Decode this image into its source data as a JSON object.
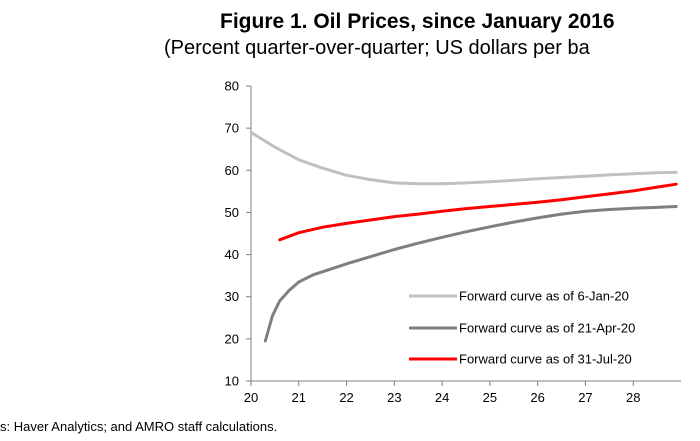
{
  "chart_data": {
    "type": "line",
    "title": "Figure 1. Oil Prices, since January 2016",
    "subtitle": "(Percent quarter-over-quarter; US dollars per ba",
    "source": "s: Haver Analytics; and AMRO staff calculations.",
    "xlim": [
      20,
      29
    ],
    "ylim": [
      10,
      80
    ],
    "xticks": [
      "20",
      "21",
      "22",
      "23",
      "24",
      "25",
      "26",
      "27",
      "28"
    ],
    "yticks": [
      "10",
      "20",
      "30",
      "40",
      "50",
      "60",
      "70",
      "80"
    ],
    "grid": false,
    "legend_position": "bottom-right",
    "series": [
      {
        "name": "Forward curve as of 6-Jan-20",
        "color": "#c0c0c0",
        "x": [
          20,
          20.5,
          21,
          21.5,
          22,
          22.5,
          23,
          23.5,
          24,
          24.5,
          25,
          25.5,
          26,
          26.5,
          27,
          27.5,
          28,
          28.5,
          28.9
        ],
        "y": [
          69,
          65.5,
          62.5,
          60.5,
          58.8,
          57.8,
          57.0,
          56.8,
          56.8,
          57.0,
          57.3,
          57.6,
          58.0,
          58.3,
          58.6,
          58.9,
          59.2,
          59.4,
          59.5
        ]
      },
      {
        "name": "Forward curve as of 21-Apr-20",
        "color": "#7f7f7f",
        "x": [
          20.3,
          20.45,
          20.6,
          20.8,
          21,
          21.3,
          21.6,
          22,
          22.5,
          23,
          23.5,
          24,
          24.5,
          25,
          25.5,
          26,
          26.5,
          27,
          27.5,
          28,
          28.5,
          28.9
        ],
        "y": [
          19.5,
          25.5,
          29.0,
          31.5,
          33.5,
          35.2,
          36.3,
          37.8,
          39.5,
          41.2,
          42.7,
          44.1,
          45.4,
          46.6,
          47.7,
          48.7,
          49.6,
          50.3,
          50.7,
          51.0,
          51.2,
          51.4
        ]
      },
      {
        "name": "Forward curve as of 31-Jul-20",
        "color": "#ff0000",
        "x": [
          20.6,
          21,
          21.5,
          22,
          22.5,
          23,
          23.5,
          24,
          24.5,
          25,
          25.5,
          26,
          26.5,
          27,
          27.5,
          28,
          28.5,
          28.9
        ],
        "y": [
          43.5,
          45.2,
          46.5,
          47.4,
          48.2,
          49.0,
          49.6,
          50.3,
          50.9,
          51.4,
          51.9,
          52.4,
          53.0,
          53.7,
          54.4,
          55.1,
          56.0,
          56.7
        ]
      }
    ]
  }
}
